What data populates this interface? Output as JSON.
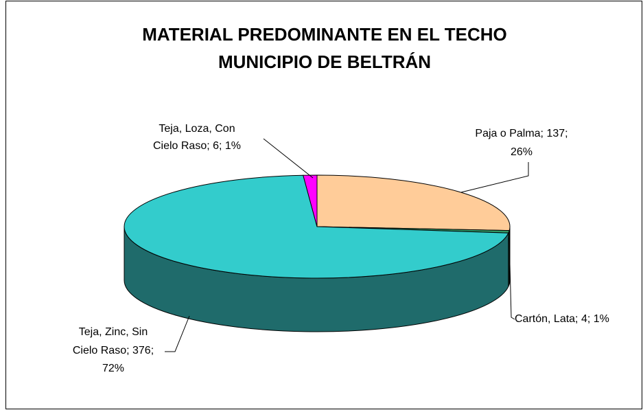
{
  "chart_data": {
    "type": "pie3d",
    "title": "MATERIAL PREDOMINANTE EN EL TECHO",
    "subtitle": "MUNICIPIO DE BELTRÁN",
    "values": [
      137,
      4,
      376,
      6
    ],
    "value_labels": [
      [
        "Paja o Palma; 137;",
        "26%"
      ],
      [
        "Cartón, Lata; 4; 1%"
      ],
      [
        "Teja, Zinc, Sin",
        "Cielo Raso; 376;",
        "72%"
      ],
      [
        "Teja, Loza, Con",
        "Cielo Raso; 6; 1%"
      ]
    ],
    "colors": [
      "#FFCC99",
      "#339966",
      "#33CCCC",
      "#FF00FF"
    ],
    "side_colors": [
      "#997A5C",
      "#1F5C3D",
      "#1F6B6B",
      "#990099"
    ]
  }
}
